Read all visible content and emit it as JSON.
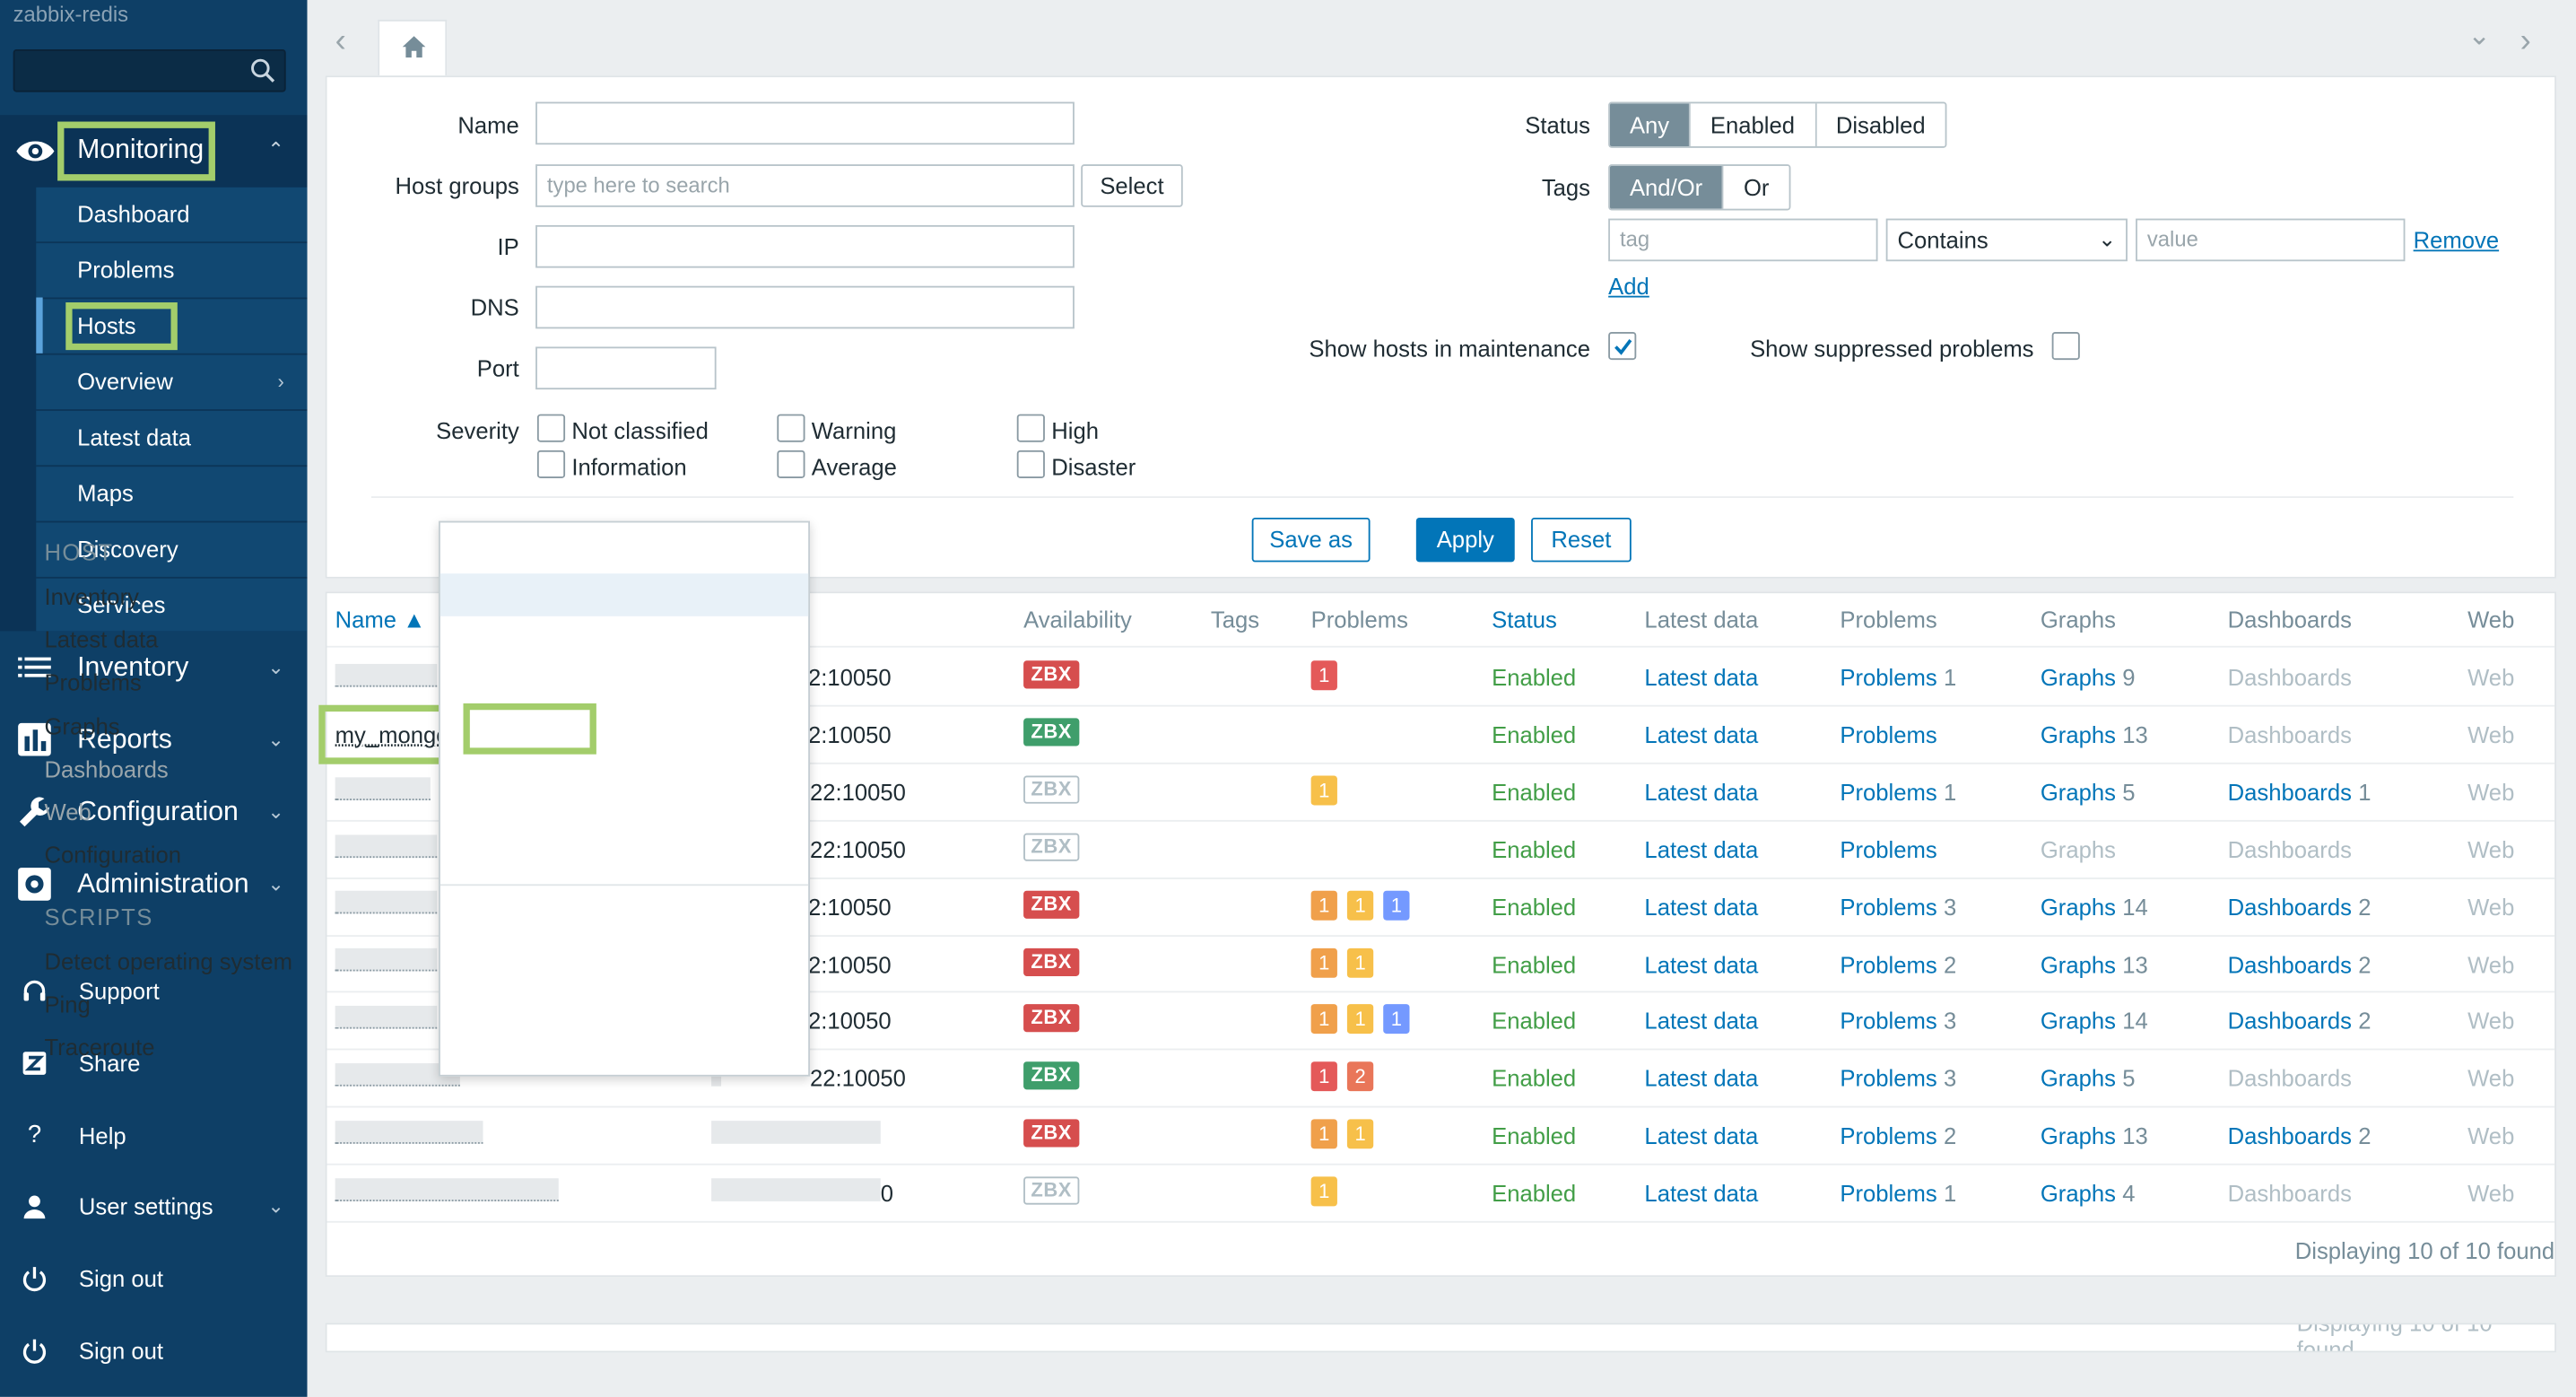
{
  "app": {
    "brand": "zabbix-redis"
  },
  "sidebar": {
    "monitoring_label": "Monitoring",
    "monitoring_items": [
      {
        "label": "Dashboard"
      },
      {
        "label": "Problems"
      },
      {
        "label": "Hosts"
      },
      {
        "label": "Overview"
      },
      {
        "label": "Latest data"
      },
      {
        "label": "Maps"
      },
      {
        "label": "Discovery"
      },
      {
        "label": "Services"
      }
    ],
    "sections": [
      {
        "label": "Inventory",
        "icon": "list-icon"
      },
      {
        "label": "Reports",
        "icon": "bar-chart-icon"
      },
      {
        "label": "Configuration",
        "icon": "wrench-icon"
      },
      {
        "label": "Administration",
        "icon": "gear-icon"
      }
    ],
    "bottom": [
      {
        "label": "Support",
        "icon": "headset-icon"
      },
      {
        "label": "Share",
        "icon": "share-icon"
      },
      {
        "label": "Help",
        "icon": "help-icon"
      },
      {
        "label": "User settings",
        "icon": "user-icon"
      },
      {
        "label": "Sign out",
        "icon": "power-icon"
      },
      {
        "label": "Sign out",
        "icon": "power-icon"
      }
    ]
  },
  "filter": {
    "name_label": "Name",
    "host_groups_label": "Host groups",
    "host_groups_placeholder": "type here to search",
    "select_button": "Select",
    "ip_label": "IP",
    "dns_label": "DNS",
    "port_label": "Port",
    "severity_label": "Severity",
    "severities": [
      "Not classified",
      "Warning",
      "High",
      "Information",
      "Average",
      "Disaster"
    ],
    "status_label": "Status",
    "status_options": [
      "Any",
      "Enabled",
      "Disabled"
    ],
    "status_selected": "Any",
    "tags_label": "Tags",
    "tags_options": [
      "And/Or",
      "Or"
    ],
    "tags_selected": "And/Or",
    "tag_placeholder": "tag",
    "tag_operator": "Contains",
    "value_placeholder": "value",
    "remove_link": "Remove",
    "add_link": "Add",
    "show_maintenance_label": "Show hosts in maintenance",
    "show_maintenance_checked": true,
    "show_suppressed_label": "Show suppressed problems",
    "show_suppressed_checked": false,
    "save_as_button": "Save as",
    "apply_button": "Apply",
    "reset_button": "Reset"
  },
  "table": {
    "headers": {
      "name": "Name ▲",
      "availability": "Availability",
      "tags": "Tags",
      "problems": "Problems",
      "status": "Status",
      "latest_data": "Latest data",
      "problems2": "Problems",
      "graphs": "Graphs",
      "dashboards": "Dashboards",
      "web": "Web"
    },
    "rows": [
      {
        "name": "",
        "interface": ":2:10050",
        "zbx": "red",
        "badges": [
          {
            "v": "1",
            "c": "red"
          }
        ],
        "status": "Enabled",
        "latest": "Latest data",
        "problems": "Problems",
        "problems_count": "1",
        "graphs": "Graphs",
        "graphs_count": "9",
        "dashboards": "Dashboards",
        "dashboards_count": "",
        "web": "Web"
      },
      {
        "name": "my_mongo",
        "interface": ":2:10050",
        "zbx": "green",
        "badges": [],
        "status": "Enabled",
        "latest": "Latest data",
        "problems": "Problems",
        "problems_count": "",
        "graphs": "Graphs",
        "graphs_count": "13",
        "dashboards": "Dashboards",
        "dashboards_count": "",
        "web": "Web"
      },
      {
        "name": "",
        "interface": "22:10050",
        "zbx": "grey",
        "badges": [
          {
            "v": "1",
            "c": "yellow"
          }
        ],
        "status": "Enabled",
        "latest": "Latest data",
        "problems": "Problems",
        "problems_count": "1",
        "graphs": "Graphs",
        "graphs_count": "5",
        "dashboards": "Dashboards",
        "dashboards_count": "1",
        "web": "Web"
      },
      {
        "name": "",
        "interface": "22:10050",
        "zbx": "grey",
        "badges": [],
        "status": "Enabled",
        "latest": "Latest data",
        "problems": "Problems",
        "problems_count": "",
        "graphs": "Graphs",
        "graphs_count": "",
        "dashboards": "Dashboards",
        "dashboards_count": "",
        "web": "Web"
      },
      {
        "name": "",
        "interface": ":2:10050",
        "zbx": "red",
        "badges": [
          {
            "v": "1",
            "c": "amber"
          },
          {
            "v": "1",
            "c": "yellow"
          },
          {
            "v": "1",
            "c": "blue"
          }
        ],
        "status": "Enabled",
        "latest": "Latest data",
        "problems": "Problems",
        "problems_count": "3",
        "graphs": "Graphs",
        "graphs_count": "14",
        "dashboards": "Dashboards",
        "dashboards_count": "2",
        "web": "Web"
      },
      {
        "name": "",
        "interface": ":2:10050",
        "zbx": "red",
        "badges": [
          {
            "v": "1",
            "c": "amber"
          },
          {
            "v": "1",
            "c": "yellow"
          }
        ],
        "status": "Enabled",
        "latest": "Latest data",
        "problems": "Problems",
        "problems_count": "2",
        "graphs": "Graphs",
        "graphs_count": "13",
        "dashboards": "Dashboards",
        "dashboards_count": "2",
        "web": "Web"
      },
      {
        "name": "",
        "interface": ":2:10050",
        "zbx": "red",
        "badges": [
          {
            "v": "1",
            "c": "amber"
          },
          {
            "v": "1",
            "c": "yellow"
          },
          {
            "v": "1",
            "c": "blue"
          }
        ],
        "status": "Enabled",
        "latest": "Latest data",
        "problems": "Problems",
        "problems_count": "3",
        "graphs": "Graphs",
        "graphs_count": "14",
        "dashboards": "Dashboards",
        "dashboards_count": "2",
        "web": "Web"
      },
      {
        "name": "",
        "interface": "22:10050",
        "zbx": "green",
        "badges": [
          {
            "v": "1",
            "c": "red"
          },
          {
            "v": "2",
            "c": "orange"
          }
        ],
        "status": "Enabled",
        "latest": "Latest data",
        "problems": "Problems",
        "problems_count": "3",
        "graphs": "Graphs",
        "graphs_count": "5",
        "dashboards": "Dashboards",
        "dashboards_count": "",
        "web": "Web"
      },
      {
        "name": "",
        "interface": "",
        "zbx": "red",
        "badges": [
          {
            "v": "1",
            "c": "amber"
          },
          {
            "v": "1",
            "c": "yellow"
          }
        ],
        "status": "Enabled",
        "latest": "Latest data",
        "problems": "Problems",
        "problems_count": "2",
        "graphs": "Graphs",
        "graphs_count": "13",
        "dashboards": "Dashboards",
        "dashboards_count": "2",
        "web": "Web"
      },
      {
        "name": "",
        "interface": "0",
        "zbx": "grey",
        "badges": [
          {
            "v": "1",
            "c": "yellow"
          }
        ],
        "status": "Enabled",
        "latest": "Latest data",
        "problems": "Problems",
        "problems_count": "1",
        "graphs": "Graphs",
        "graphs_count": "4",
        "dashboards": "Dashboards",
        "dashboards_count": "",
        "web": "Web"
      }
    ],
    "zbx_label": "ZBX",
    "footer": "Displaying 10 of 10 found"
  },
  "context_menu": {
    "host_header": "HOST",
    "host_items": [
      "Inventory",
      "Latest data",
      "Problems",
      "Graphs",
      "Dashboards",
      "Web",
      "Configuration"
    ],
    "disabled_items": [
      "Dashboards",
      "Web"
    ],
    "scripts_header": "SCRIPTS",
    "script_items": [
      "Detect operating system",
      "Ping",
      "Traceroute"
    ]
  },
  "colors": {
    "sidebar_bg": "#0e3f66",
    "accent_link": "#0275b8",
    "highlight_box": "#a3cd6b",
    "status_enabled": "#429e47"
  }
}
